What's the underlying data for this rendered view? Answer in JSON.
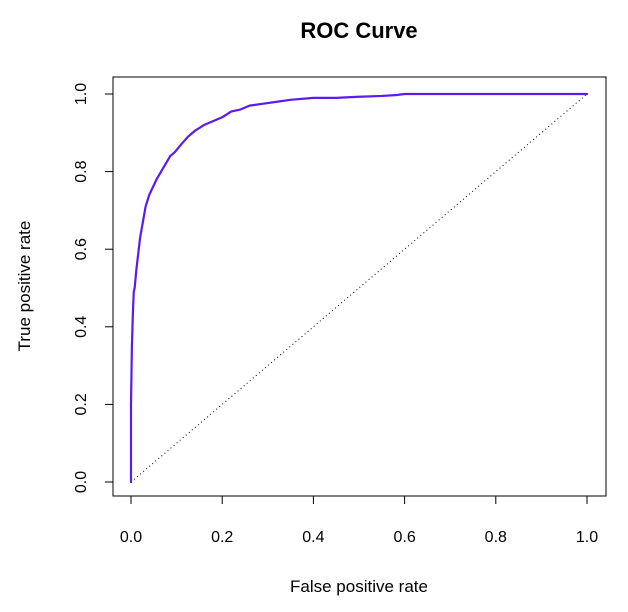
{
  "chart_data": {
    "type": "line",
    "title": "ROC Curve",
    "xlabel": "False positive rate",
    "ylabel": "True positive rate",
    "xlim": [
      0,
      1
    ],
    "ylim": [
      0,
      1
    ],
    "xticks": [
      "0.0",
      "0.2",
      "0.4",
      "0.6",
      "0.8",
      "1.0"
    ],
    "yticks": [
      "0.0",
      "0.2",
      "0.4",
      "0.6",
      "0.8",
      "1.0"
    ],
    "grid": false,
    "legend": "none",
    "colors": {
      "roc": "#5a1bef",
      "reference": "#000000"
    },
    "reference_line": {
      "style": "dotted",
      "x": [
        0,
        1
      ],
      "y": [
        0,
        1
      ]
    },
    "series": [
      {
        "x": [
          0.0,
          0.0,
          0.002,
          0.004,
          0.006,
          0.008,
          0.012,
          0.016,
          0.02,
          0.026,
          0.032,
          0.04,
          0.048,
          0.056,
          0.066,
          0.076,
          0.086,
          0.096,
          0.11,
          0.125,
          0.14,
          0.16,
          0.18,
          0.2,
          0.22,
          0.24,
          0.26,
          0.29,
          0.32,
          0.35,
          0.4,
          0.45,
          0.5,
          0.55,
          0.58,
          0.6,
          0.7,
          0.8,
          0.9,
          1.0
        ],
        "y": [
          0.0,
          0.2,
          0.35,
          0.43,
          0.49,
          0.5,
          0.55,
          0.59,
          0.63,
          0.67,
          0.71,
          0.74,
          0.76,
          0.78,
          0.8,
          0.82,
          0.84,
          0.85,
          0.87,
          0.89,
          0.905,
          0.92,
          0.93,
          0.94,
          0.955,
          0.96,
          0.97,
          0.975,
          0.98,
          0.985,
          0.99,
          0.99,
          0.993,
          0.995,
          0.997,
          1.0,
          1.0,
          1.0,
          1.0,
          1.0
        ]
      }
    ]
  }
}
